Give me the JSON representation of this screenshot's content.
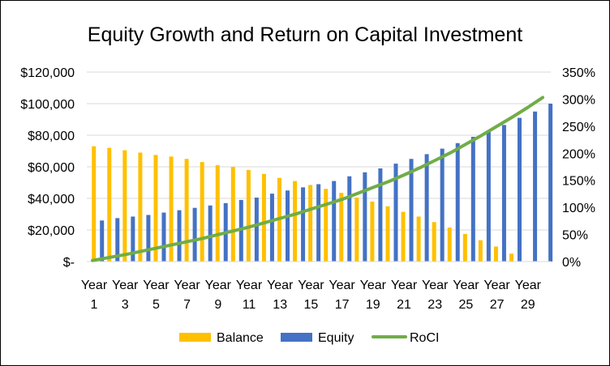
{
  "chart_data": {
    "type": "bar",
    "title": "Equity Growth and Return on Capital Investment",
    "xlabel": "",
    "ylabel": "",
    "x_tick_labels": [
      {
        "line1": "Year",
        "line2": "1"
      },
      {
        "line1": "Year",
        "line2": "3"
      },
      {
        "line1": "Year",
        "line2": "5"
      },
      {
        "line1": "Year",
        "line2": "7"
      },
      {
        "line1": "Year",
        "line2": "9"
      },
      {
        "line1": "Year",
        "line2": "11"
      },
      {
        "line1": "Year",
        "line2": "13"
      },
      {
        "line1": "Year",
        "line2": "15"
      },
      {
        "line1": "Year",
        "line2": "17"
      },
      {
        "line1": "Year",
        "line2": "19"
      },
      {
        "line1": "Year",
        "line2": "21"
      },
      {
        "line1": "Year",
        "line2": "23"
      },
      {
        "line1": "Year",
        "line2": "25"
      },
      {
        "line1": "Year",
        "line2": "27"
      },
      {
        "line1": "Year",
        "line2": "29"
      }
    ],
    "categories": [
      "Year 1",
      "Year 2",
      "Year 3",
      "Year 4",
      "Year 5",
      "Year 6",
      "Year 7",
      "Year 8",
      "Year 9",
      "Year 10",
      "Year 11",
      "Year 12",
      "Year 13",
      "Year 14",
      "Year 15",
      "Year 16",
      "Year 17",
      "Year 18",
      "Year 19",
      "Year 20",
      "Year 21",
      "Year 22",
      "Year 23",
      "Year 24",
      "Year 25",
      "Year 26",
      "Year 27",
      "Year 28",
      "Year 29",
      "Year 30"
    ],
    "y_left": {
      "lim": [
        0,
        120000
      ],
      "ticks": [
        0,
        20000,
        40000,
        60000,
        80000,
        100000,
        120000
      ],
      "tick_labels": [
        "$-",
        "$20,000",
        "$40,000",
        "$60,000",
        "$80,000",
        "$100,000",
        "$120,000"
      ]
    },
    "y_right": {
      "lim": [
        0,
        3.5
      ],
      "ticks": [
        0,
        0.5,
        1,
        1.5,
        2,
        2.5,
        3,
        3.5
      ],
      "tick_labels": [
        "0%",
        "50%",
        "100%",
        "150%",
        "200%",
        "250%",
        "300%",
        "350%"
      ]
    },
    "series": [
      {
        "name": "Equity",
        "kind": "bar",
        "axis": "left",
        "color": "#4472C4",
        "values": [
          26000,
          27500,
          28500,
          29500,
          31000,
          32500,
          34000,
          35500,
          37000,
          39000,
          40500,
          43000,
          45000,
          47000,
          49000,
          51000,
          54000,
          56500,
          59000,
          62000,
          65000,
          68000,
          71500,
          75000,
          79000,
          83000,
          86500,
          91000,
          95000,
          100000
        ]
      },
      {
        "name": "Balance",
        "kind": "bar",
        "axis": "left",
        "color": "#FFC000",
        "values": [
          73000,
          72000,
          70500,
          69000,
          67500,
          66500,
          65000,
          63000,
          61000,
          60000,
          58000,
          55500,
          53000,
          51000,
          48500,
          46000,
          43500,
          40500,
          38000,
          35000,
          31500,
          28500,
          25000,
          21500,
          17500,
          13500,
          9500,
          5000,
          0,
          0
        ]
      },
      {
        "name": "RoCI",
        "kind": "line",
        "axis": "right",
        "color": "#70AD47",
        "values": [
          0.02,
          0.08,
          0.13,
          0.19,
          0.25,
          0.31,
          0.37,
          0.43,
          0.5,
          0.57,
          0.64,
          0.72,
          0.8,
          0.88,
          0.97,
          1.06,
          1.15,
          1.26,
          1.37,
          1.48,
          1.6,
          1.73,
          1.87,
          2.01,
          2.17,
          2.33,
          2.5,
          2.67,
          2.85,
          3.03
        ]
      }
    ],
    "legend": {
      "placement": "bottom",
      "entries": [
        {
          "name": "Balance",
          "kind": "bar",
          "color": "#FFC000"
        },
        {
          "name": "Equity",
          "kind": "bar",
          "color": "#4472C4"
        },
        {
          "name": "RoCI",
          "kind": "line",
          "color": "#70AD47"
        }
      ]
    },
    "grid": true,
    "grid_color": "#D9D9D9"
  }
}
